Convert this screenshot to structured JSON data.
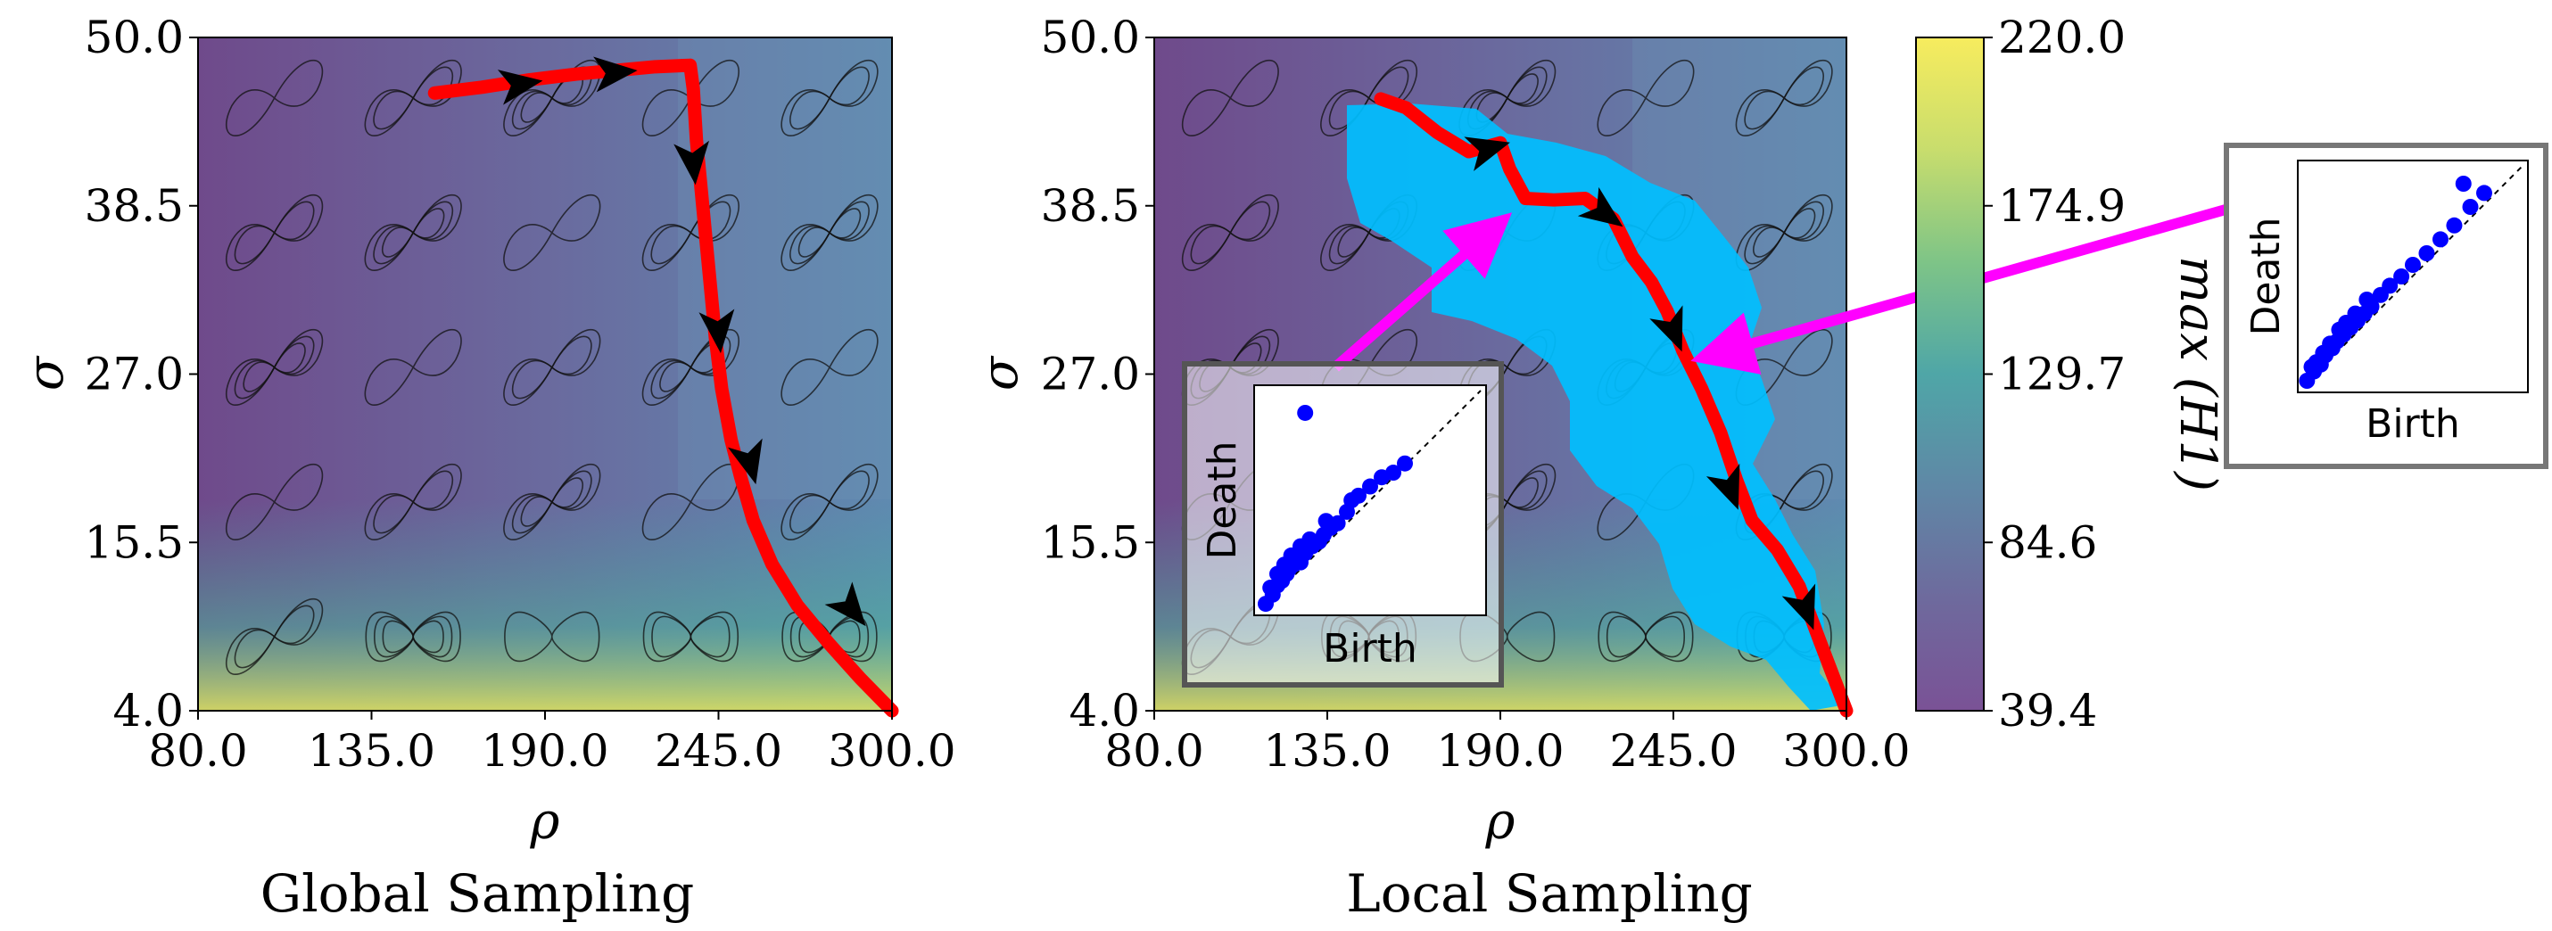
{
  "chart_data": [
    {
      "type": "heatmap",
      "panel": "global",
      "caption": "Global Sampling",
      "xlabel": "ρ",
      "ylabel": "σ",
      "xlim": [
        80.0,
        300.0
      ],
      "ylim": [
        4.0,
        50.0
      ],
      "xticks": [
        "80.0",
        "135.0",
        "190.0",
        "245.0",
        "300.0"
      ],
      "yticks": [
        "4.0",
        "15.5",
        "27.0",
        "38.5",
        "50.0"
      ],
      "path": {
        "color": "#ff0000",
        "points": [
          [
            155,
            46.2
          ],
          [
            170,
            46.6
          ],
          [
            185,
            47.1
          ],
          [
            200,
            47.5
          ],
          [
            215,
            47.8
          ],
          [
            225,
            48.0
          ],
          [
            236,
            48.1
          ],
          [
            237,
            46.5
          ],
          [
            238,
            43.0
          ],
          [
            240,
            38.5
          ],
          [
            242,
            34.0
          ],
          [
            244,
            29.5
          ],
          [
            246,
            26.0
          ],
          [
            249,
            22.5
          ],
          [
            252,
            20.0
          ],
          [
            256,
            17.0
          ],
          [
            262,
            14.0
          ],
          [
            270,
            11.2
          ],
          [
            280,
            8.6
          ],
          [
            290,
            6.2
          ],
          [
            300,
            4.0
          ]
        ]
      },
      "arrows": [
        [
          182,
          46.8
        ],
        [
          212,
          47.6
        ],
        [
          237,
          41.5
        ],
        [
          245,
          30.0
        ],
        [
          255,
          21.0
        ],
        [
          287,
          11.0
        ]
      ]
    },
    {
      "type": "heatmap",
      "panel": "local",
      "caption": "Local Sampling",
      "xlabel": "ρ",
      "ylabel": "σ",
      "xlim": [
        80.0,
        300.0
      ],
      "ylim": [
        4.0,
        50.0
      ],
      "xticks": [
        "80.0",
        "135.0",
        "190.0",
        "245.0",
        "300.0"
      ],
      "yticks": [
        "4.0",
        "15.5",
        "27.0",
        "38.5",
        "50.0"
      ],
      "sampled_region_color": "#00b7ff",
      "path": {
        "color": "#ff0000",
        "points": [
          [
            152,
            45.8
          ],
          [
            160,
            45.2
          ],
          [
            170,
            43.5
          ],
          [
            180,
            42.2
          ],
          [
            190,
            42.8
          ],
          [
            193,
            41.0
          ],
          [
            198,
            39.0
          ],
          [
            207,
            38.9
          ],
          [
            217,
            39.0
          ],
          [
            226,
            37.6
          ],
          [
            232,
            35.0
          ],
          [
            238,
            33.3
          ],
          [
            243,
            31.3
          ],
          [
            248,
            28.6
          ],
          [
            254,
            26.0
          ],
          [
            260,
            23.0
          ],
          [
            265,
            19.8
          ],
          [
            270,
            17.0
          ],
          [
            278,
            15.0
          ],
          [
            285,
            12.5
          ],
          [
            292,
            8.5
          ],
          [
            300,
            4.0
          ]
        ]
      },
      "arrows": [
        [
          186,
          42.4
        ],
        [
          223,
          38.0
        ],
        [
          245,
          30.0
        ],
        [
          263,
          19.2
        ],
        [
          287,
          11.0
        ]
      ],
      "inset": {
        "xlabel": "Birth",
        "ylabel": "Death",
        "points": [
          [
            0.05,
            0.05
          ],
          [
            0.08,
            0.09
          ],
          [
            0.1,
            0.13
          ],
          [
            0.12,
            0.15
          ],
          [
            0.14,
            0.18
          ],
          [
            0.15,
            0.2
          ],
          [
            0.17,
            0.22
          ],
          [
            0.18,
            0.25
          ],
          [
            0.2,
            0.23
          ],
          [
            0.22,
            0.27
          ],
          [
            0.25,
            0.3
          ],
          [
            0.28,
            0.32
          ],
          [
            0.3,
            0.35
          ],
          [
            0.33,
            0.38
          ],
          [
            0.36,
            0.4
          ],
          [
            0.4,
            0.45
          ],
          [
            0.45,
            0.52
          ],
          [
            0.5,
            0.56
          ],
          [
            0.55,
            0.6
          ],
          [
            0.6,
            0.62
          ],
          [
            0.65,
            0.66
          ],
          [
            0.1,
            0.18
          ],
          [
            0.13,
            0.22
          ],
          [
            0.16,
            0.26
          ],
          [
            0.11,
            0.15
          ],
          [
            0.07,
            0.12
          ],
          [
            0.2,
            0.3
          ],
          [
            0.24,
            0.33
          ],
          [
            0.42,
            0.5
          ],
          [
            0.31,
            0.41
          ],
          [
            0.22,
            0.88
          ]
        ]
      }
    }
  ],
  "colorbar": {
    "label": "max (H1)",
    "min": 39.4,
    "max": 220.0,
    "ticks": [
      "39.4",
      "84.6",
      "129.7",
      "174.9",
      "220.0"
    ],
    "colors": [
      "#7a5296",
      "#6e6a9d",
      "#5f88a6",
      "#4fa6a7",
      "#7ec487",
      "#c8dd6d",
      "#f7ec5e"
    ]
  },
  "right_inset": {
    "xlabel": "Birth",
    "ylabel": "Death",
    "points": [
      [
        0.04,
        0.05
      ],
      [
        0.07,
        0.09
      ],
      [
        0.1,
        0.12
      ],
      [
        0.12,
        0.16
      ],
      [
        0.15,
        0.19
      ],
      [
        0.17,
        0.22
      ],
      [
        0.2,
        0.25
      ],
      [
        0.23,
        0.28
      ],
      [
        0.26,
        0.31
      ],
      [
        0.29,
        0.34
      ],
      [
        0.32,
        0.37
      ],
      [
        0.36,
        0.42
      ],
      [
        0.4,
        0.46
      ],
      [
        0.45,
        0.5
      ],
      [
        0.5,
        0.55
      ],
      [
        0.56,
        0.6
      ],
      [
        0.62,
        0.66
      ],
      [
        0.68,
        0.72
      ],
      [
        0.75,
        0.8
      ],
      [
        0.72,
        0.9
      ],
      [
        0.81,
        0.86
      ],
      [
        0.08,
        0.13
      ],
      [
        0.11,
        0.17
      ],
      [
        0.14,
        0.21
      ],
      [
        0.18,
        0.27
      ],
      [
        0.06,
        0.11
      ],
      [
        0.21,
        0.3
      ],
      [
        0.25,
        0.34
      ],
      [
        0.3,
        0.4
      ]
    ]
  },
  "colors": {
    "path": "#ff0000",
    "arrow": "#000000",
    "pointer": "#ff00ff",
    "pd_points": "#0000ff"
  }
}
